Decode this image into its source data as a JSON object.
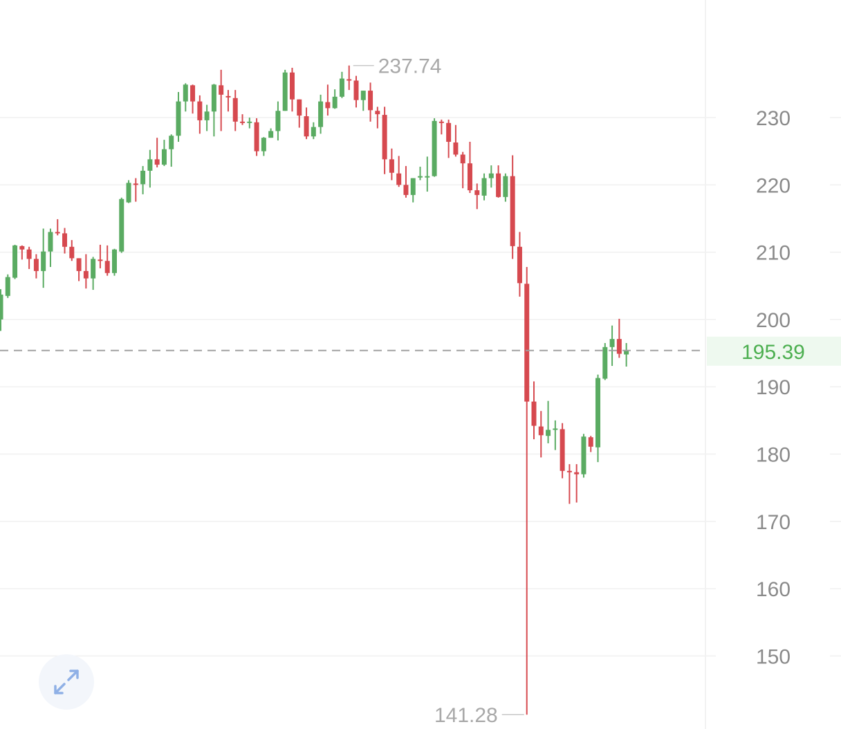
{
  "chart_data": {
    "type": "candlestick",
    "ylim": [
      138,
      241
    ],
    "y_ticks": [
      150,
      160,
      170,
      180,
      190,
      200,
      210,
      220,
      230
    ],
    "y_tick_labels": [
      "150",
      "160",
      "170",
      "180",
      "190",
      "200",
      "210",
      "220",
      "230"
    ],
    "grid": true,
    "last_price": 195.39,
    "last_price_label": "195.39",
    "max_label": "237.74",
    "min_label": "141.28",
    "colors": {
      "up": "#5aab62",
      "down": "#d6494f",
      "last_price": "#4caf50",
      "last_price_bg": "#eef9ef",
      "grid": "#f0f0f0",
      "axis_text": "#8a8a8a"
    },
    "candles": [
      [
        200.0,
        198.3,
        204.5,
        203.7
      ],
      [
        203.5,
        203.2,
        206.7,
        206.3
      ],
      [
        206.2,
        206.0,
        211.1,
        211.0
      ],
      [
        210.9,
        208.9,
        211.0,
        210.4
      ],
      [
        210.4,
        207.5,
        210.8,
        209.0
      ],
      [
        209.0,
        206.1,
        209.7,
        207.2
      ],
      [
        207.2,
        204.7,
        213.5,
        210.1
      ],
      [
        210.1,
        207.8,
        213.5,
        213.0
      ],
      [
        213.0,
        212.5,
        214.9,
        212.8
      ],
      [
        212.8,
        209.8,
        213.6,
        210.8
      ],
      [
        210.8,
        208.7,
        211.8,
        209.1
      ],
      [
        209.1,
        205.7,
        209.1,
        207.2
      ],
      [
        207.2,
        204.6,
        209.7,
        206.1
      ],
      [
        206.1,
        204.4,
        209.3,
        209.0
      ],
      [
        208.9,
        207.6,
        211.1,
        208.8
      ],
      [
        208.7,
        206.5,
        211.0,
        206.9
      ],
      [
        206.9,
        206.5,
        210.5,
        210.4
      ],
      [
        210.1,
        209.9,
        218.1,
        217.9
      ],
      [
        217.4,
        217.3,
        220.7,
        220.3
      ],
      [
        220.2,
        217.5,
        221.0,
        220.1
      ],
      [
        220.1,
        218.6,
        222.8,
        222.1
      ],
      [
        222.1,
        219.6,
        225.2,
        223.8
      ],
      [
        223.8,
        222.6,
        227.0,
        223.0
      ],
      [
        223.0,
        222.8,
        226.7,
        225.3
      ],
      [
        225.3,
        222.7,
        227.5,
        227.3
      ],
      [
        227.3,
        226.4,
        233.8,
        232.4
      ],
      [
        232.4,
        230.9,
        235.1,
        234.9
      ],
      [
        234.8,
        230.6,
        234.9,
        232.4
      ],
      [
        232.4,
        227.6,
        233.3,
        229.6
      ],
      [
        229.6,
        228.0,
        231.9,
        230.9
      ],
      [
        230.9,
        227.2,
        235.0,
        234.9
      ],
      [
        234.8,
        228.0,
        237.1,
        233.4
      ],
      [
        233.2,
        230.9,
        234.1,
        233.0
      ],
      [
        232.9,
        228.0,
        234.1,
        229.4
      ],
      [
        229.4,
        228.9,
        230.5,
        229.2
      ],
      [
        229.2,
        228.4,
        230.0,
        229.4
      ],
      [
        229.3,
        224.3,
        229.9,
        225.0
      ],
      [
        225.0,
        224.3,
        227.1,
        227.0
      ],
      [
        227.0,
        227.0,
        228.4,
        228.0
      ],
      [
        228.0,
        226.6,
        232.4,
        231.0
      ],
      [
        231.0,
        231.0,
        237.1,
        236.7
      ],
      [
        236.7,
        230.9,
        237.4,
        232.7
      ],
      [
        232.7,
        228.5,
        232.7,
        230.3
      ],
      [
        230.2,
        226.8,
        231.5,
        227.2
      ],
      [
        227.2,
        226.8,
        229.3,
        228.6
      ],
      [
        228.6,
        227.6,
        233.4,
        232.4
      ],
      [
        232.3,
        230.3,
        234.9,
        231.4
      ],
      [
        231.4,
        231.3,
        234.2,
        233.1
      ],
      [
        233.1,
        232.9,
        236.8,
        235.8
      ],
      [
        235.7,
        234.1,
        237.74,
        235.5
      ],
      [
        235.5,
        231.5,
        236.2,
        232.6
      ],
      [
        232.6,
        231.0,
        234.0,
        234.0
      ],
      [
        234.0,
        229.4,
        235.2,
        231.1
      ],
      [
        231.0,
        228.4,
        231.6,
        230.5
      ],
      [
        230.4,
        221.6,
        231.6,
        223.8
      ],
      [
        223.8,
        220.7,
        225.4,
        221.8
      ],
      [
        221.7,
        219.7,
        224.3,
        220.0
      ],
      [
        220.0,
        218.1,
        222.8,
        218.5
      ],
      [
        218.5,
        217.4,
        221.0,
        221.0
      ],
      [
        221.2,
        220.7,
        222.7,
        221.3
      ],
      [
        221.2,
        219.0,
        224.2,
        221.3
      ],
      [
        221.3,
        221.2,
        229.9,
        229.5
      ],
      [
        229.4,
        227.5,
        229.7,
        229.2
      ],
      [
        229.2,
        224.0,
        229.7,
        226.4
      ],
      [
        226.3,
        224.2,
        228.9,
        224.5
      ],
      [
        224.5,
        219.5,
        224.9,
        223.2
      ],
      [
        223.2,
        218.8,
        226.4,
        219.2
      ],
      [
        219.2,
        216.4,
        220.2,
        218.5
      ],
      [
        218.4,
        217.7,
        221.7,
        221.0
      ],
      [
        221.0,
        219.6,
        222.9,
        221.7
      ],
      [
        221.7,
        218.1,
        222.9,
        218.2
      ],
      [
        218.2,
        217.5,
        221.7,
        221.3
      ],
      [
        221.3,
        209.0,
        224.4,
        210.9
      ],
      [
        210.8,
        203.4,
        213.0,
        205.4
      ],
      [
        205.3,
        141.28,
        207.8,
        187.8
      ],
      [
        187.8,
        182.2,
        190.8,
        184.2
      ],
      [
        184.1,
        179.5,
        186.4,
        182.8
      ],
      [
        182.7,
        181.6,
        187.9,
        183.6
      ],
      [
        183.6,
        180.6,
        185.0,
        183.8
      ],
      [
        183.7,
        176.4,
        184.6,
        177.5
      ],
      [
        177.5,
        172.6,
        178.5,
        177.4
      ],
      [
        177.3,
        172.8,
        178.5,
        177.0
      ],
      [
        177.0,
        176.5,
        183.0,
        182.6
      ],
      [
        182.5,
        180.3,
        182.7,
        181.1
      ],
      [
        181.0,
        178.8,
        191.8,
        191.3
      ],
      [
        191.2,
        191.0,
        196.5,
        195.9
      ],
      [
        195.9,
        193.1,
        199.1,
        197.1
      ],
      [
        197.1,
        194.3,
        200.1,
        194.9
      ],
      [
        194.8,
        193.0,
        196.5,
        195.39
      ]
    ],
    "candle_fields": [
      "open",
      "low",
      "high",
      "close"
    ]
  },
  "controls": {
    "expand_icon": "expand-arrows-icon"
  }
}
